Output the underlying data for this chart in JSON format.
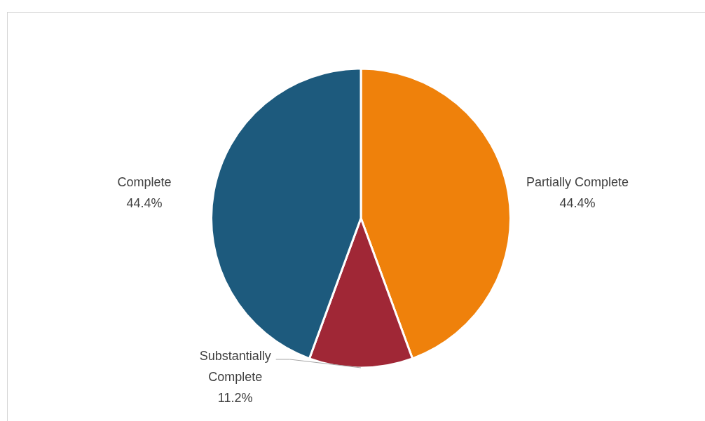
{
  "chart_data": {
    "type": "pie",
    "categories": [
      "Partially Complete",
      "Substantially Complete",
      "Complete"
    ],
    "values": [
      44.4,
      11.2,
      44.4
    ],
    "colors": [
      "#ef810b",
      "#a02736",
      "#1d5a7d"
    ],
    "value_labels": [
      "44.4%",
      "11.2%",
      "44.4%"
    ],
    "legend": false
  }
}
